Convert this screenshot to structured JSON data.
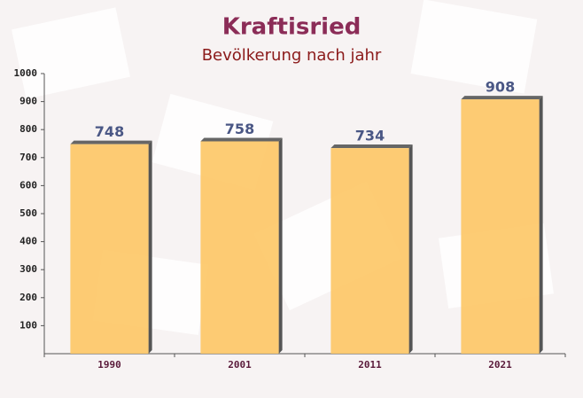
{
  "chart_data": {
    "type": "bar",
    "title": "Kraftisried",
    "subtitle": "Bevölkerung nach jahr",
    "categories": [
      "1990",
      "2001",
      "2011",
      "2021"
    ],
    "values": [
      748,
      758,
      734,
      908
    ],
    "color": "#fdc765",
    "ylim": [
      0,
      1000
    ],
    "yticks": [
      100,
      200,
      300,
      400,
      500,
      600,
      700,
      800,
      900,
      1000
    ],
    "grid": false
  }
}
